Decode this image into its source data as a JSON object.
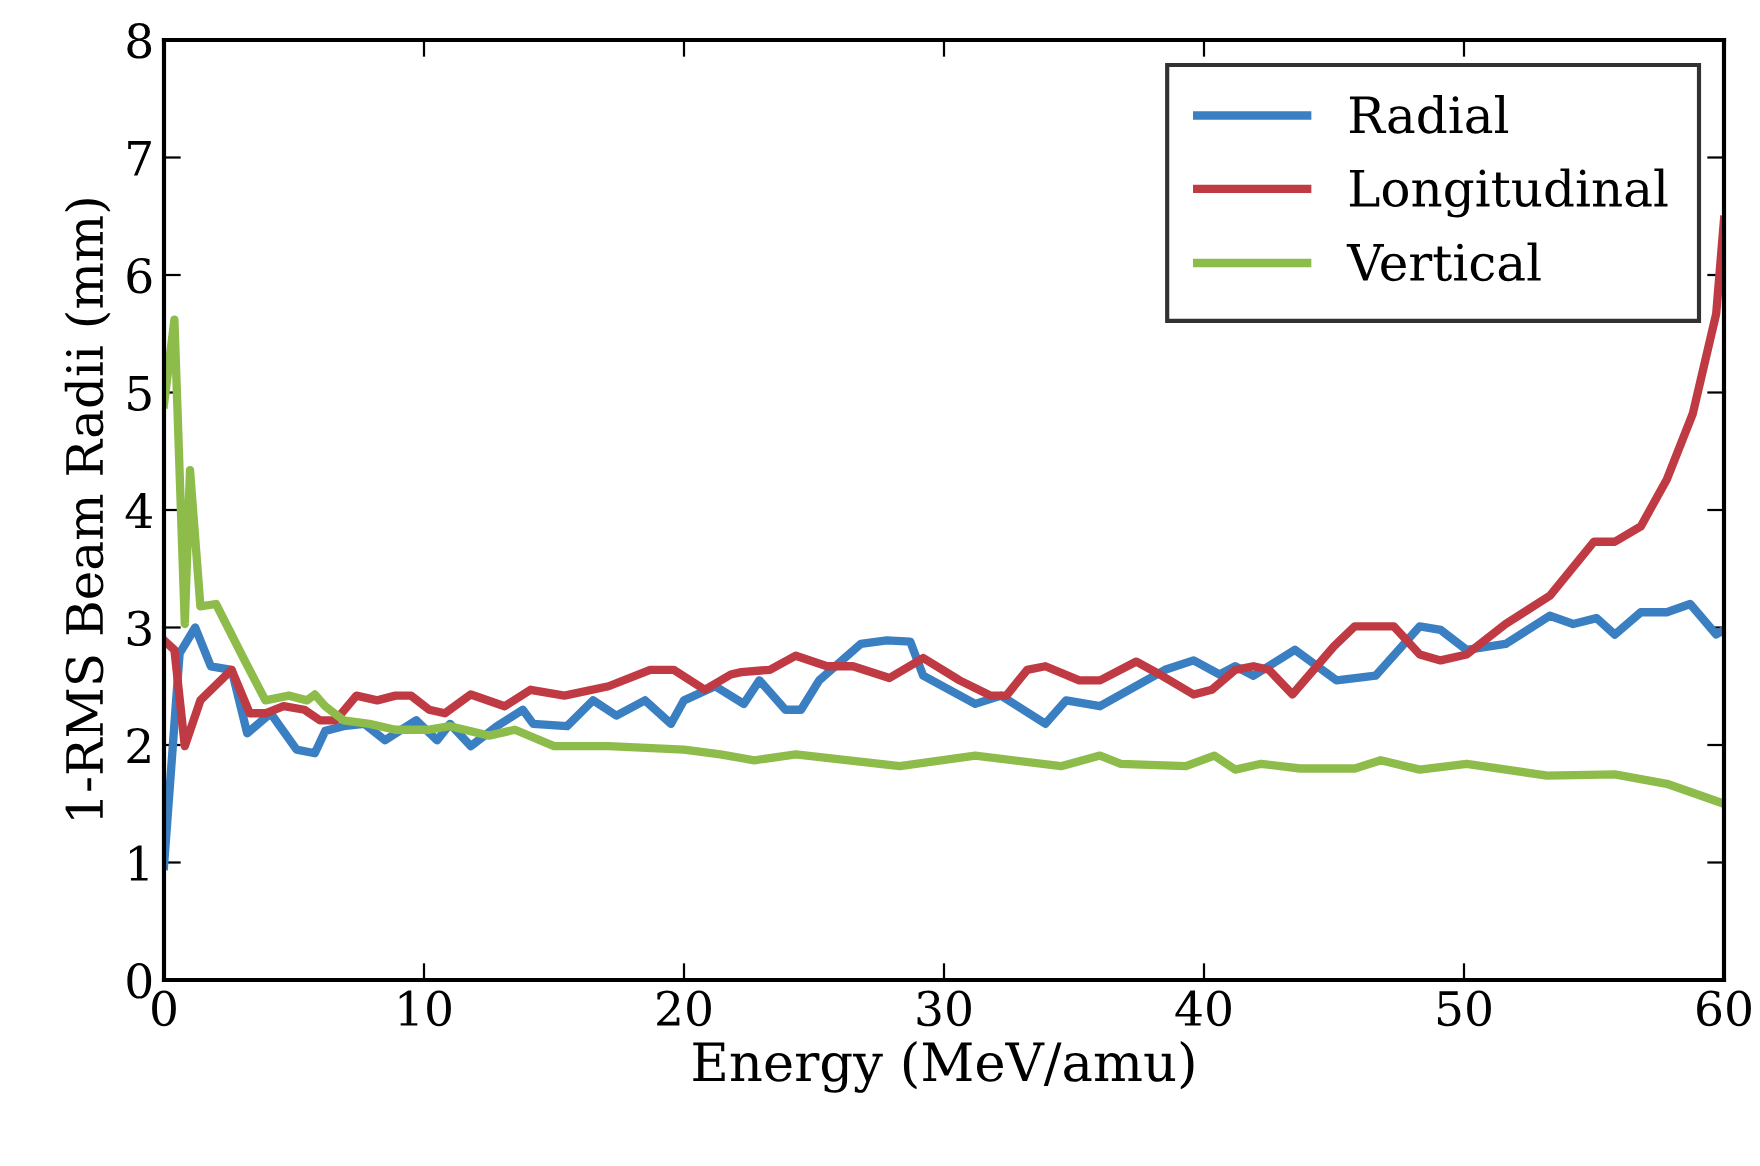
{
  "chart_data": {
    "type": "line",
    "xlabel": "Energy (MeV/amu)",
    "ylabel": "1-RMS Beam Radii (mm)",
    "xlim": [
      0,
      60
    ],
    "ylim": [
      0,
      8
    ],
    "xticks": [
      0,
      10,
      20,
      30,
      40,
      50,
      60
    ],
    "yticks": [
      0,
      1,
      2,
      3,
      4,
      5,
      6,
      7,
      8
    ],
    "grid": false,
    "legend": "top right",
    "line_style": "solid",
    "marker": "none",
    "series": [
      {
        "name": "Radial",
        "color": "#3a7fc1",
        "x": [
          0,
          0.6,
          1.2,
          1.8,
          2.6,
          3.2,
          4.1,
          5.1,
          5.8,
          6.2,
          6.9,
          7.7,
          8.5,
          9.7,
          10.5,
          11,
          11.8,
          12.8,
          13.8,
          14.2,
          15.5,
          16.5,
          17.4,
          18.5,
          19.5,
          20,
          21.2,
          22.3,
          22.9,
          23.9,
          24.5,
          25.2,
          26.8,
          27.8,
          28.7,
          29.2,
          31.2,
          32.2,
          33.9,
          34.7,
          36,
          38.5,
          39.6,
          40.6,
          41.2,
          41.9,
          43.5,
          45.1,
          46.6,
          48.3,
          49.1,
          50.1,
          51.6,
          53.3,
          54.2,
          55.1,
          55.8,
          56.8,
          57.8,
          58.7,
          59.7,
          60
        ],
        "values": [
          0.97,
          2.78,
          3.0,
          2.67,
          2.64,
          2.1,
          2.27,
          1.96,
          1.93,
          2.12,
          2.16,
          2.18,
          2.04,
          2.21,
          2.04,
          2.18,
          1.99,
          2.16,
          2.3,
          2.18,
          2.16,
          2.38,
          2.25,
          2.38,
          2.18,
          2.38,
          2.5,
          2.35,
          2.55,
          2.3,
          2.3,
          2.55,
          2.86,
          2.89,
          2.88,
          2.59,
          2.35,
          2.42,
          2.18,
          2.38,
          2.33,
          2.64,
          2.72,
          2.6,
          2.67,
          2.59,
          2.81,
          2.55,
          2.59,
          3.01,
          2.98,
          2.81,
          2.86,
          3.1,
          3.03,
          3.08,
          2.94,
          3.13,
          3.13,
          3.2,
          2.94,
          2.98
        ]
      },
      {
        "name": "Longitudinal",
        "color": "#c03a44",
        "x": [
          0,
          0.4,
          0.8,
          1.4,
          2.6,
          3.3,
          3.9,
          4.6,
          5.4,
          6,
          6.6,
          7.4,
          8.2,
          8.9,
          9.5,
          10.2,
          10.8,
          11.8,
          13.1,
          14.1,
          15.4,
          17.1,
          18.7,
          19.6,
          20.8,
          21.8,
          22.2,
          23.3,
          24.3,
          25.5,
          26.5,
          27.9,
          29.2,
          30.6,
          31.8,
          32.4,
          33.2,
          33.9,
          35.2,
          36,
          37.4,
          38.3,
          39.6,
          40.3,
          41.2,
          41.9,
          42.5,
          43.4,
          45,
          45.8,
          47.3,
          48.3,
          49.1,
          50.1,
          51.6,
          53.3,
          55,
          55.8,
          56.8,
          57.8,
          58.8,
          59.7,
          60
        ],
        "values": [
          2.89,
          2.81,
          1.99,
          2.38,
          2.64,
          2.27,
          2.27,
          2.33,
          2.3,
          2.21,
          2.21,
          2.42,
          2.38,
          2.42,
          2.42,
          2.3,
          2.27,
          2.43,
          2.33,
          2.47,
          2.42,
          2.5,
          2.64,
          2.64,
          2.47,
          2.6,
          2.62,
          2.64,
          2.76,
          2.67,
          2.67,
          2.57,
          2.74,
          2.55,
          2.42,
          2.42,
          2.64,
          2.67,
          2.55,
          2.55,
          2.71,
          2.6,
          2.43,
          2.47,
          2.64,
          2.67,
          2.64,
          2.43,
          2.84,
          3.01,
          3.01,
          2.77,
          2.72,
          2.77,
          3.03,
          3.27,
          3.73,
          3.73,
          3.86,
          4.26,
          4.82,
          5.67,
          6.47
        ]
      },
      {
        "name": "Vertical",
        "color": "#8dbc4a",
        "x": [
          0,
          0.4,
          0.8,
          1.0,
          1.4,
          2,
          3.1,
          3.9,
          4.8,
          5.5,
          5.8,
          6.2,
          6.9,
          7.9,
          8.9,
          10.2,
          11,
          12.5,
          13.5,
          15,
          17.1,
          20,
          21.4,
          22.7,
          24.3,
          28.3,
          31.2,
          34.5,
          36,
          36.8,
          39.3,
          40.4,
          41.2,
          42.2,
          43.7,
          45.8,
          46.8,
          48.3,
          50.1,
          53.2,
          55.8,
          57.8,
          60
        ],
        "values": [
          4.9,
          5.62,
          3.03,
          4.34,
          3.18,
          3.2,
          2.72,
          2.38,
          2.42,
          2.38,
          2.43,
          2.33,
          2.21,
          2.18,
          2.13,
          2.13,
          2.16,
          2.08,
          2.13,
          1.99,
          1.99,
          1.96,
          1.92,
          1.87,
          1.92,
          1.82,
          1.91,
          1.82,
          1.91,
          1.84,
          1.82,
          1.91,
          1.79,
          1.84,
          1.8,
          1.8,
          1.87,
          1.79,
          1.84,
          1.74,
          1.75,
          1.67,
          1.5
        ]
      }
    ]
  }
}
